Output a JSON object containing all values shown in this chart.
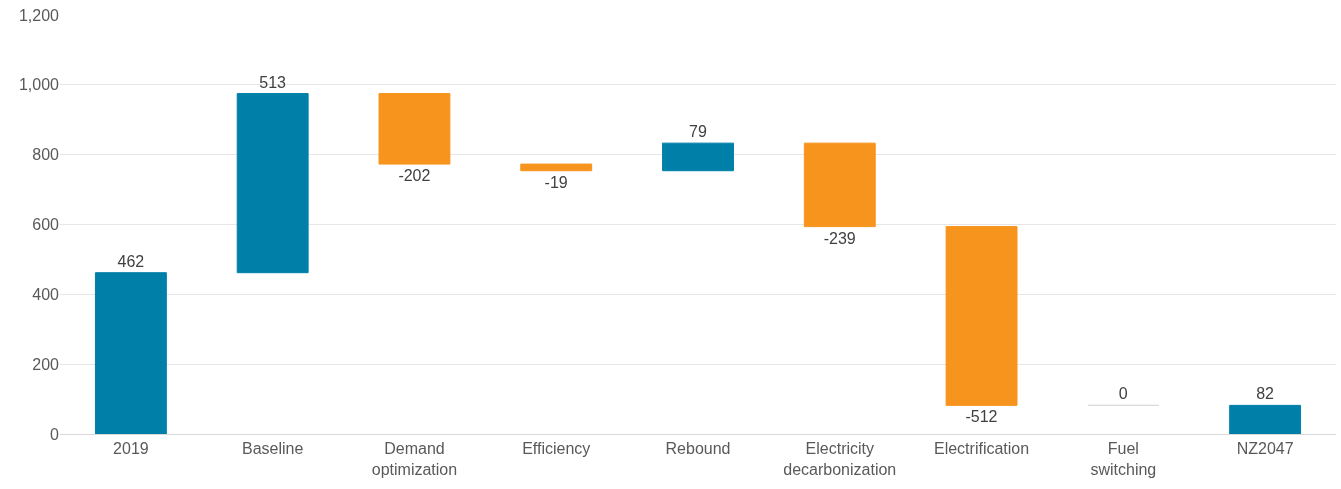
{
  "chart_data": {
    "type": "bar",
    "categories": [
      "2019",
      "Baseline",
      "Demand\noptimization",
      "Efficiency",
      "Rebound",
      "Electricity\ndecarbonization",
      "Electrification",
      "Fuel\nswitching",
      "NZ2047"
    ],
    "values": [
      462,
      513,
      -202,
      -19,
      79,
      -239,
      -512,
      0,
      82
    ],
    "base": [
      0,
      462,
      975,
      773,
      754,
      833,
      594,
      82,
      0
    ],
    "colors": [
      "#0080a8",
      "#0080a8",
      "#f7941d",
      "#f7941d",
      "#0080a8",
      "#f7941d",
      "#f7941d",
      "#d9d9d9",
      "#0080a8"
    ],
    "ylim": [
      0,
      1200
    ],
    "yticks": [
      0,
      200,
      400,
      600,
      800,
      {
        "value": 1000,
        "label": "1,000"
      },
      {
        "value": 1200,
        "label": "1,200"
      }
    ],
    "grid": "y",
    "data_labels": true,
    "legend": false
  }
}
